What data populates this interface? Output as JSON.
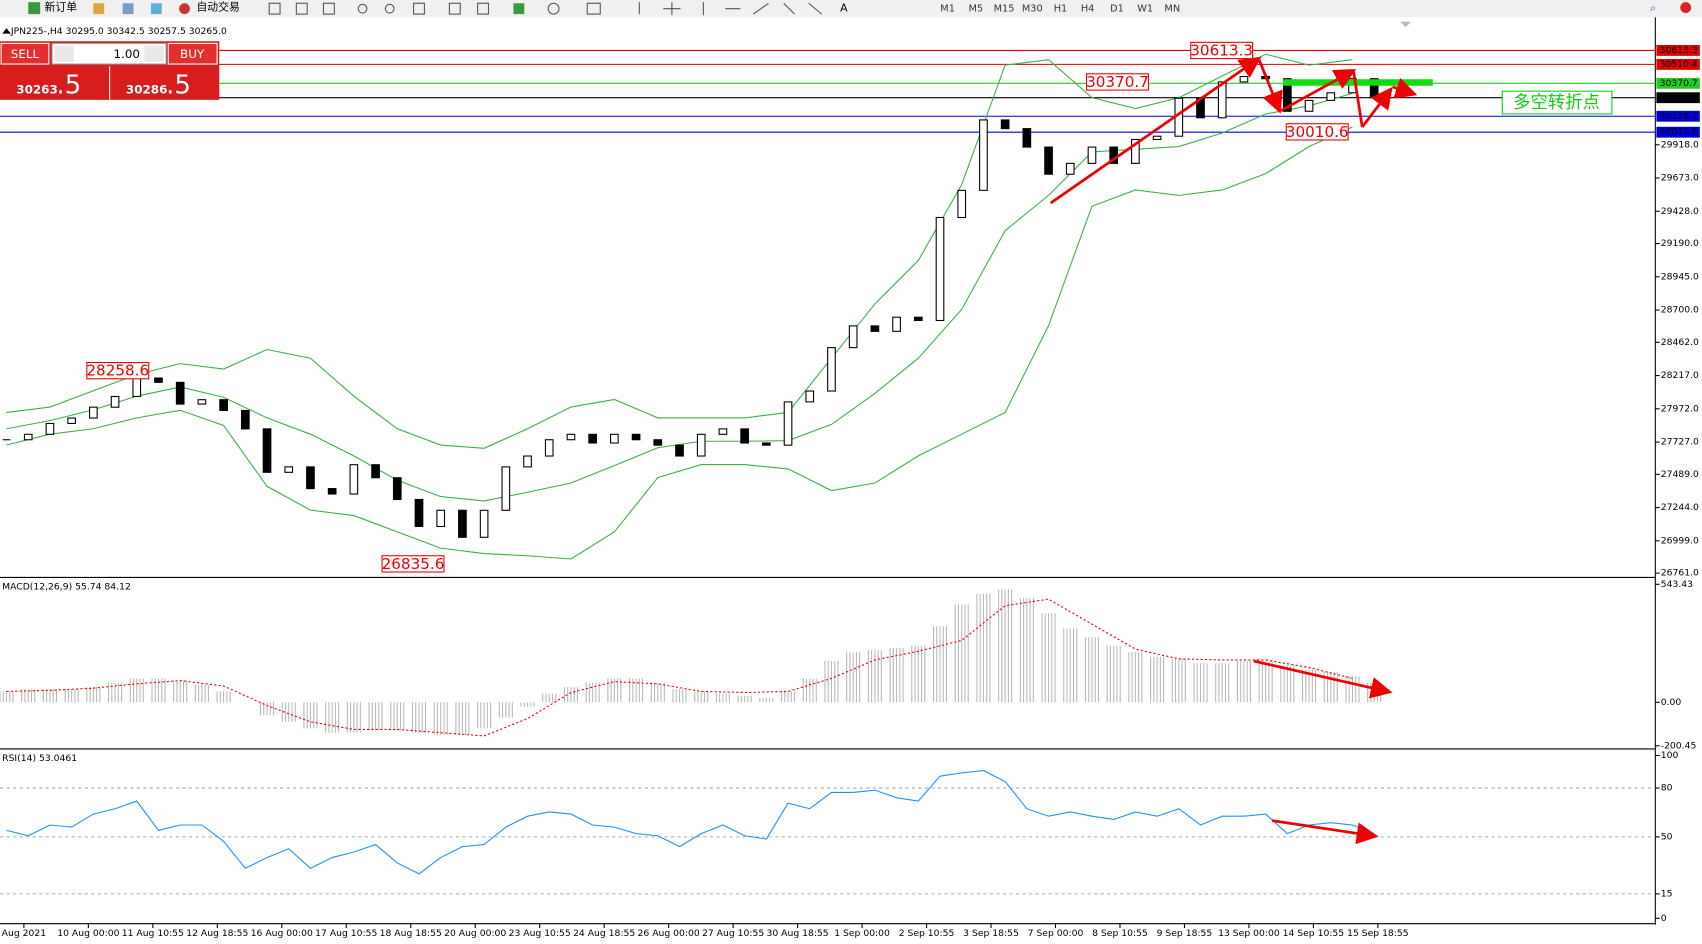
{
  "toolbar": {
    "new_order": "新订单",
    "auto_trading": "自动交易",
    "timeframes": [
      "M1",
      "M5",
      "M15",
      "M30",
      "H1",
      "H4",
      "D1",
      "W1",
      "MN"
    ]
  },
  "trade_panel": {
    "sell": "SELL",
    "buy": "BUY",
    "volume": "1.00",
    "sell_main": "30263",
    "sell_pip": ".5",
    "buy_main": "30286",
    "buy_pip": ".5"
  },
  "chart_data": {
    "type": "candlestick",
    "title": "JPN225-,H4  30295.0 30342.5 30257.5 30265.0",
    "closes": [
      27744,
      27784,
      27864,
      27904,
      27984,
      28063,
      28199,
      28167,
      28007,
      28039,
      27960,
      27824,
      27504,
      27544,
      27384,
      27344,
      27560,
      27464,
      27304,
      27105,
      27224,
      27025,
      27224,
      27544,
      27624,
      27744,
      27784,
      27720,
      27784,
      27744,
      27704,
      27624,
      27784,
      27824,
      27720,
      27704,
      28023,
      28103,
      28423,
      28583,
      28543,
      28647,
      28623,
      29382,
      29582,
      30101,
      30037,
      29901,
      29701,
      29781,
      29901,
      29781,
      29957,
      29981,
      30261,
      30117,
      30381,
      30421,
      30405,
      30165,
      30245,
      30301,
      30405,
      30265
    ],
    "bands": {
      "upper": [
        27945,
        27985,
        28105,
        28225,
        28305,
        28265,
        28409,
        28345,
        28065,
        27825,
        27705,
        27681,
        27825,
        27985,
        28041,
        27905,
        27905,
        27905,
        27945,
        28345,
        28745,
        29065,
        29625,
        30505,
        30545,
        30265,
        30185,
        30265,
        30425,
        30585,
        30505,
        30545
      ],
      "middle": [
        27825,
        27885,
        27965,
        28065,
        28133,
        28057,
        27905,
        27785,
        27625,
        27445,
        27325,
        27293,
        27357,
        27425,
        27553,
        27685,
        27733,
        27733,
        27737,
        27857,
        28085,
        28345,
        28705,
        29285,
        29545,
        29865,
        29885,
        29905,
        30005,
        30145,
        30205,
        30297
      ],
      "lower": [
        27705,
        27785,
        27825,
        27905,
        27961,
        27849,
        27401,
        27225,
        27185,
        27065,
        26945,
        26905,
        26889,
        26865,
        27065,
        27465,
        27561,
        27561,
        27529,
        27369,
        27425,
        27625,
        27785,
        27945,
        28585,
        29465,
        29585,
        29545,
        29585,
        29705,
        29905,
        30049
      ],
      "color": "#3cb043"
    },
    "ylim": [
      26737,
      30857
    ],
    "yticks": [
      {
        "value": 29918,
        "label": "29918.0"
      },
      {
        "value": 29673,
        "label": "29673.0"
      },
      {
        "value": 29428,
        "label": "29428.0"
      },
      {
        "value": 29190,
        "label": "29190.0"
      },
      {
        "value": 28945,
        "label": "28945.0"
      },
      {
        "value": 28700,
        "label": "28700.0"
      },
      {
        "value": 28462,
        "label": "28462.0"
      },
      {
        "value": 28217,
        "label": "28217.0"
      },
      {
        "value": 27972,
        "label": "27972.0"
      },
      {
        "value": 27727,
        "label": "27727.0"
      },
      {
        "value": 27489,
        "label": "27489.0"
      },
      {
        "value": 27244,
        "label": "27244.0"
      },
      {
        "value": 26999,
        "label": "26999.0"
      },
      {
        "value": 26761,
        "label": "26761.0"
      }
    ],
    "levels": [
      {
        "value": 30613.3,
        "color": "#e00000"
      },
      {
        "value": 30510.4,
        "color": "#e00000"
      },
      {
        "value": 30370.7,
        "color": "#22cc22"
      },
      {
        "value": 30265,
        "label": "30265.0",
        "color": "#000000"
      },
      {
        "value": 30128.2,
        "color": "#0000dd"
      },
      {
        "value": 30010.6,
        "color": "#0000dd"
      }
    ],
    "annotations": [
      30613.3,
      30370.7,
      28258.6,
      26835.6,
      30010.6
    ],
    "note": "多空转折点",
    "x_labels": [
      "Aug 2021",
      "10 Aug 00:00",
      "11 Aug 10:55",
      "12 Aug 18:55",
      "16 Aug 00:00",
      "17 Aug 10:55",
      "18 Aug 18:55",
      "20 Aug 00:00",
      "23 Aug 10:55",
      "24 Aug 18:55",
      "26 Aug 00:00",
      "27 Aug 10:55",
      "30 Aug 18:55",
      "1 Sep 00:00",
      "2 Sep 10:55",
      "3 Sep 18:55",
      "7 Sep 00:00",
      "8 Sep 10:55",
      "9 Sep 18:55",
      "13 Sep 00:00",
      "14 Sep 10:55",
      "15 Sep 18:55"
    ],
    "macd": {
      "label": "MACD(12,26,9) 55.74 84.12",
      "ylim": [
        -205,
        565
      ],
      "yticks": [
        543.43,
        {
          "value": 0,
          "label": "0.00"
        },
        -200.45
      ],
      "histogram": [
        50,
        60,
        60,
        60,
        70,
        90,
        110,
        110,
        100,
        80,
        50,
        0,
        -60,
        -90,
        -120,
        -140,
        -140,
        -130,
        -130,
        -140,
        -150,
        -150,
        -120,
        -70,
        -20,
        40,
        70,
        90,
        110,
        110,
        90,
        60,
        50,
        40,
        30,
        20,
        50,
        110,
        190,
        230,
        240,
        250,
        260,
        350,
        450,
        500,
        520,
        480,
        410,
        340,
        300,
        260,
        230,
        210,
        200,
        180,
        180,
        190,
        190,
        170,
        150,
        140,
        120,
        90
      ],
      "signal": [
        50,
        55,
        65,
        85,
        100,
        75,
        -15,
        -90,
        -125,
        -125,
        -140,
        -155,
        -75,
        45,
        95,
        85,
        50,
        45,
        50,
        110,
        195,
        235,
        285,
        445,
        475,
        360,
        245,
        200,
        195,
        195,
        160,
        110
      ]
    },
    "rsi": {
      "label": "RSI(14) 53.0461",
      "ylim": [
        0,
        100
      ],
      "yticks": [
        100,
        80,
        50,
        15,
        0
      ],
      "values": [
        54,
        50.7,
        57.3,
        56,
        64,
        67.3,
        72,
        54,
        57.3,
        57.3,
        47.3,
        30.7,
        37.3,
        42.7,
        30.7,
        37.3,
        40.7,
        45.3,
        34,
        27.3,
        37.3,
        44,
        45.3,
        56,
        62.7,
        65.3,
        64,
        57.3,
        56,
        52,
        50.7,
        44,
        52,
        57.3,
        50.7,
        48.7,
        70.7,
        67.3,
        77.3,
        77.3,
        78.7,
        74,
        72,
        87.3,
        89.3,
        90.7,
        84,
        67.3,
        62.7,
        65.3,
        62.7,
        60.7,
        65.3,
        62.7,
        67.3,
        57.3,
        62.7,
        62.7,
        64,
        52,
        57.3,
        58.7,
        57.3,
        52
      ],
      "color": "#1e90ff"
    }
  }
}
